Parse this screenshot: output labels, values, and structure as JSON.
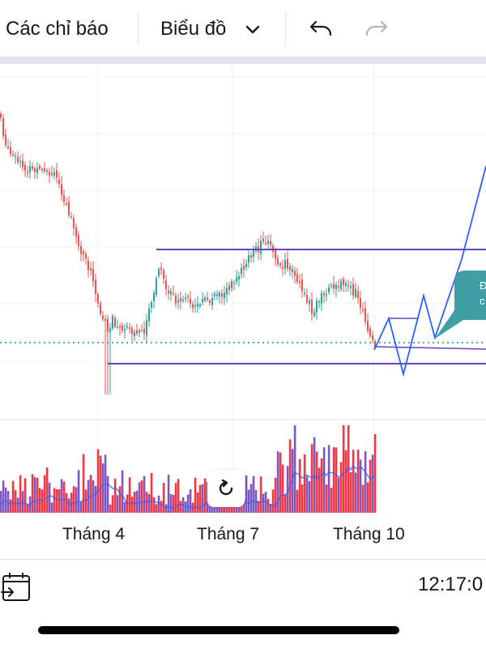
{
  "toolbar": {
    "indicators_label": "Các chỉ báo",
    "chart_type_label": "Biểu đồ",
    "undo_icon": "undo-icon",
    "redo_icon": "redo-icon"
  },
  "x_axis": {
    "labels": [
      "Tháng 4",
      "Tháng 7",
      "Tháng 10"
    ]
  },
  "status": {
    "time": "12:17:0"
  },
  "colors": {
    "up": "#26a69a",
    "down": "#ef5350",
    "volume_up": "#7e57c2",
    "volume_down": "#f23645",
    "volume_ma": "#2962ff",
    "channel": "#6a42c8",
    "projection": "#2962ff",
    "callout": "#3f9fa4",
    "price_line": "#089981"
  },
  "callout": {
    "text_1": "Đ",
    "text_2": "c"
  }
}
